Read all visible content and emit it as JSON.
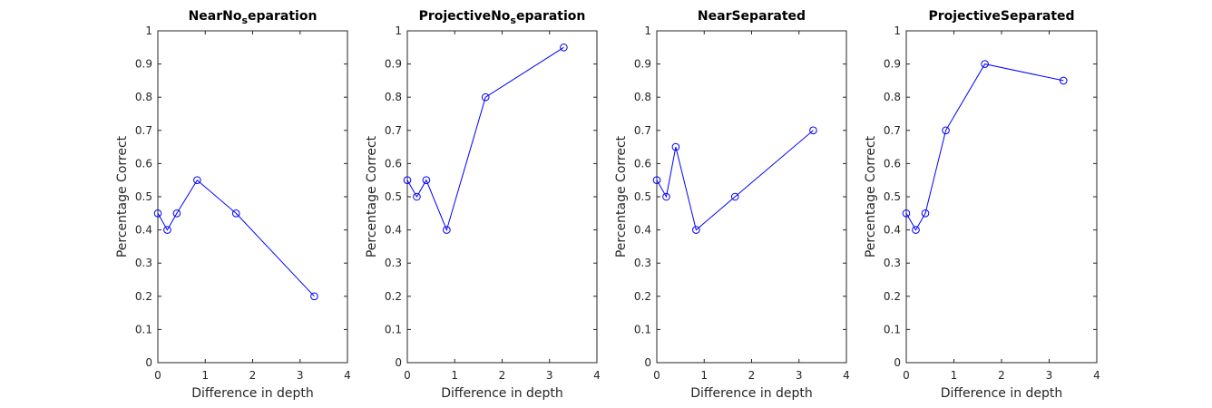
{
  "style": {
    "series_color": "#0000ff",
    "axis_color": "#262626"
  },
  "chart_data": [
    {
      "type": "line",
      "title": "NearNo_separation",
      "title_parts": [
        {
          "text": "NearNo"
        },
        {
          "text": "s",
          "sub": true
        },
        {
          "text": "eparation"
        }
      ],
      "xlabel": "Difference in depth",
      "ylabel": "Percentage Correct",
      "xlim": [
        0,
        4
      ],
      "ylim": [
        0,
        1
      ],
      "xticks": [
        0,
        1,
        2,
        3,
        4
      ],
      "yticks": [
        0,
        0.1,
        0.2,
        0.3,
        0.4,
        0.5,
        0.6,
        0.7,
        0.8,
        0.9,
        1
      ],
      "ytick_labels": [
        "0",
        "0.1",
        "0.2",
        "0.3",
        "0.4",
        "0.5",
        "0.6",
        "0.7",
        "0.8",
        "0.9",
        "1"
      ],
      "grid": false,
      "marker": "circle",
      "series": [
        {
          "x": [
            0,
            0.2,
            0.4,
            0.83,
            1.65,
            3.3
          ],
          "y": [
            0.45,
            0.4,
            0.45,
            0.55,
            0.45,
            0.2
          ]
        }
      ]
    },
    {
      "type": "line",
      "title": "ProjectiveNo_separation",
      "title_parts": [
        {
          "text": "ProjectiveNo"
        },
        {
          "text": "s",
          "sub": true
        },
        {
          "text": "eparation"
        }
      ],
      "xlabel": "Difference in depth",
      "ylabel": "Percentage Correct",
      "xlim": [
        0,
        4
      ],
      "ylim": [
        0,
        1
      ],
      "xticks": [
        0,
        1,
        2,
        3,
        4
      ],
      "yticks": [
        0,
        0.1,
        0.2,
        0.3,
        0.4,
        0.5,
        0.6,
        0.7,
        0.8,
        0.9,
        1
      ],
      "ytick_labels": [
        "0",
        "0.1",
        "0.2",
        "0.3",
        "0.4",
        "0.5",
        "0.6",
        "0.7",
        "0.8",
        "0.9",
        "1"
      ],
      "grid": false,
      "marker": "circle",
      "series": [
        {
          "x": [
            0,
            0.2,
            0.4,
            0.83,
            1.65,
            3.3
          ],
          "y": [
            0.55,
            0.5,
            0.55,
            0.4,
            0.8,
            0.95
          ]
        }
      ]
    },
    {
      "type": "line",
      "title": "NearSeparated",
      "title_parts": [
        {
          "text": "NearSeparated"
        }
      ],
      "xlabel": "Difference in depth",
      "ylabel": "Percentage Correct",
      "xlim": [
        0,
        4
      ],
      "ylim": [
        0,
        1
      ],
      "xticks": [
        0,
        1,
        2,
        3,
        4
      ],
      "yticks": [
        0,
        0.1,
        0.2,
        0.3,
        0.4,
        0.5,
        0.6,
        0.7,
        0.8,
        0.9,
        1
      ],
      "ytick_labels": [
        "0",
        "0.1",
        "0.2",
        "0.3",
        "0.4",
        "0.5",
        "0.6",
        "0.7",
        "0.8",
        "0.9",
        "1"
      ],
      "grid": false,
      "marker": "circle",
      "series": [
        {
          "x": [
            0,
            0.2,
            0.4,
            0.83,
            1.65,
            3.3
          ],
          "y": [
            0.55,
            0.5,
            0.65,
            0.4,
            0.5,
            0.7
          ]
        }
      ]
    },
    {
      "type": "line",
      "title": "ProjectiveSeparated",
      "title_parts": [
        {
          "text": "ProjectiveSeparated"
        }
      ],
      "xlabel": "Difference in depth",
      "ylabel": "Percentage Correct",
      "xlim": [
        0,
        4
      ],
      "ylim": [
        0,
        1
      ],
      "xticks": [
        0,
        1,
        2,
        3,
        4
      ],
      "yticks": [
        0,
        0.1,
        0.2,
        0.3,
        0.4,
        0.5,
        0.6,
        0.7,
        0.8,
        0.9,
        1
      ],
      "ytick_labels": [
        "0",
        "0.1",
        "0.2",
        "0.3",
        "0.4",
        "0.5",
        "0.6",
        "0.7",
        "0.8",
        "0.9",
        "1"
      ],
      "grid": false,
      "marker": "circle",
      "series": [
        {
          "x": [
            0,
            0.2,
            0.4,
            0.83,
            1.65,
            3.3
          ],
          "y": [
            0.45,
            0.4,
            0.45,
            0.7,
            0.9,
            0.85
          ]
        }
      ]
    }
  ]
}
